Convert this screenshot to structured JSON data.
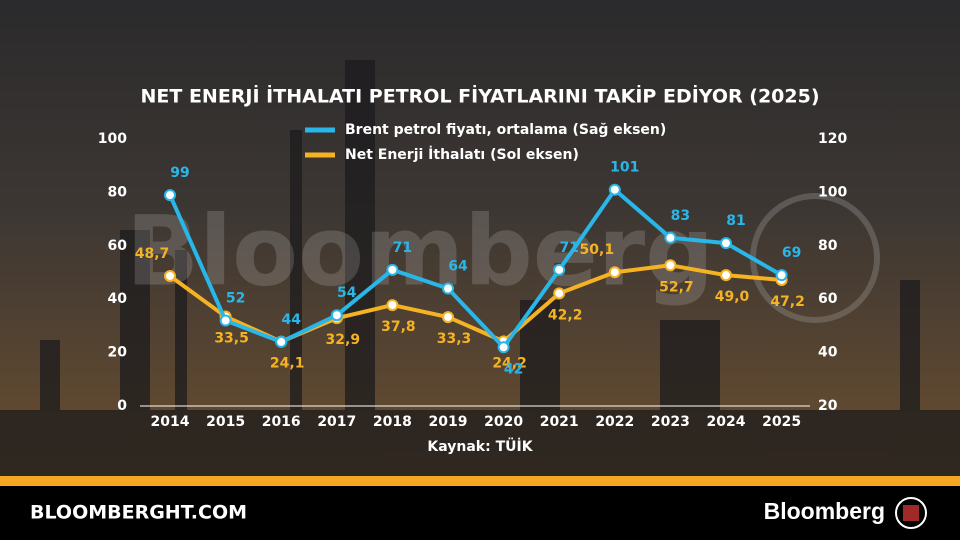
{
  "chart_data": {
    "type": "line",
    "title": "NET ENERJİ İTHALATI PETROL FİYATLARINI TAKİP EDİYOR (2025)",
    "source": "Kaynak: TÜİK",
    "watermark": "Bloomberg",
    "categories": [
      "2014",
      "2015",
      "2016",
      "2017",
      "2018",
      "2019",
      "2020",
      "2021",
      "2022",
      "2023",
      "2024",
      "2025"
    ],
    "series": [
      {
        "name": "Brent petrol fiyatı, ortalama (Sağ eksen)",
        "color": "#29b6e8",
        "axis": "y2",
        "values": [
          99,
          52,
          44,
          54,
          71,
          64,
          42,
          71,
          101,
          83,
          81,
          69
        ]
      },
      {
        "name": "Net Enerji İthalatı (Sol eksen)",
        "color": "#f5b324",
        "values": [
          48.7,
          33.5,
          24.1,
          32.9,
          37.8,
          33.3,
          24.2,
          42.2,
          50.1,
          52.7,
          49.0,
          47.2
        ],
        "value_labels": [
          "48,7",
          "33,5",
          "24,1",
          "32,9",
          "37,8",
          "33,3",
          "24,2",
          "42,2",
          "50,1",
          "52,7",
          "49,0",
          "47,2"
        ]
      }
    ],
    "ylim": [
      0,
      100
    ],
    "yticks": [
      0,
      20,
      40,
      60,
      80,
      100
    ],
    "y2lim": [
      20,
      120
    ],
    "y2ticks": [
      20,
      40,
      60,
      80,
      100,
      120
    ],
    "legend": "top"
  },
  "footer": {
    "site": "BLOOMBERGHT.COM",
    "brand": "Bloomberg"
  }
}
